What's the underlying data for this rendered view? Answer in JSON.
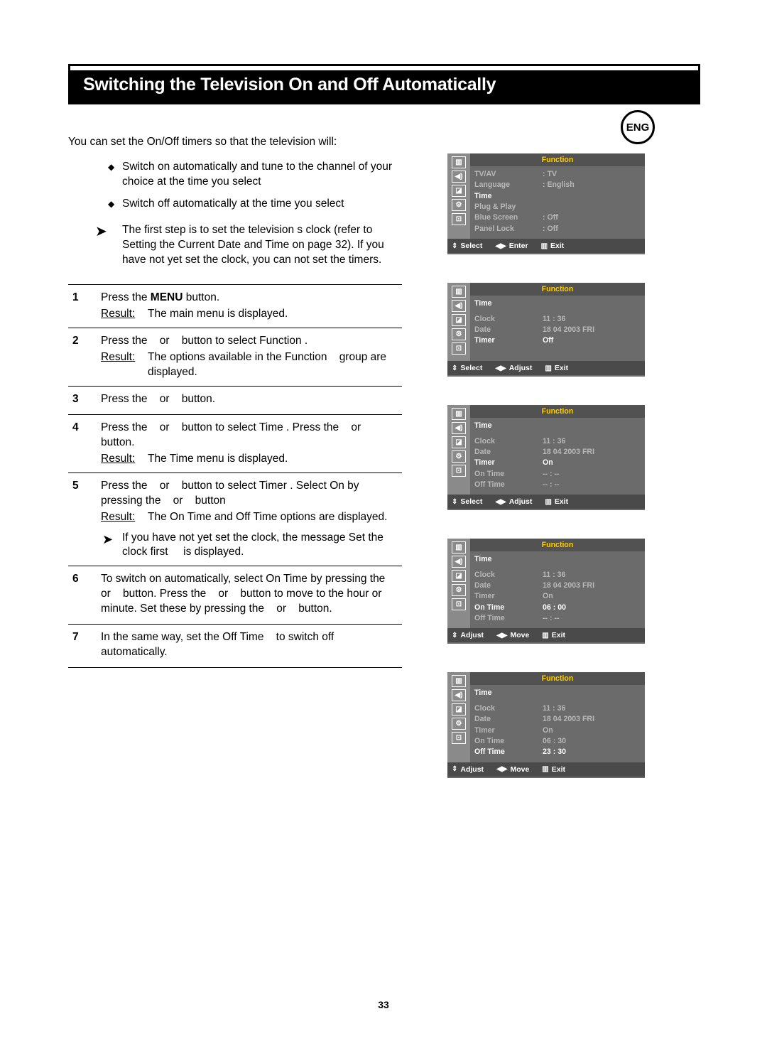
{
  "page_number": "33",
  "lang_badge": "ENG",
  "title": "Switching the Television On and Off Automatically",
  "intro": "You can set the On/Off timers so that the television will:",
  "bullets": [
    "Switch on automatically and tune to the channel of your choice at the time you select",
    "Switch off automatically at the time you select"
  ],
  "pointer_note": "The first step is to set the television s clock (refer to Setting the Current Date and Time  on page 32). If you have not yet set the clock, you can not set the timers.",
  "steps": [
    {
      "num": "1",
      "body": "Press the <b>MENU</b> button.",
      "result": "The main menu is displayed."
    },
    {
      "num": "2",
      "body": "Press the    or    button to select Function .",
      "result": "The options available in the Function    group are displayed."
    },
    {
      "num": "3",
      "body": "Press the    or    button."
    },
    {
      "num": "4",
      "body": "Press the    or    button to select Time . Press the    or    button.",
      "result": "The  Time   menu is displayed."
    },
    {
      "num": "5",
      "body": "Press the    or    button to select Timer . Select On by pressing the    or    button",
      "result": "The  On Time   and  Off Time   options are displayed.",
      "note": "If you have not yet set the clock, the message  Set the clock first     is displayed."
    },
    {
      "num": "6",
      "body": "To switch on automatically, select On Time  by pressing the    or    button. Press the    or    button to move to the hour or minute. Set these by pressing the    or    button."
    },
    {
      "num": "7",
      "body": "In the same way, set the Off Time    to switch off automatically."
    }
  ],
  "osd_icons": [
    "▥",
    "◀)",
    "◪",
    "⚙",
    "⊡"
  ],
  "osd_header": "Function",
  "osd": [
    {
      "rows": [
        {
          "lab": "TV/AV",
          "val": ": TV",
          "dim": true
        },
        {
          "lab": "Language",
          "val": ": English",
          "dim": true
        },
        {
          "lab": "Time",
          "val": "",
          "hl": true
        },
        {
          "lab": "Plug & Play",
          "val": "",
          "dim": true
        },
        {
          "lab": "Blue Screen",
          "val": ": Off",
          "dim": true
        },
        {
          "lab": "Panel Lock",
          "val": ": Off",
          "dim": true
        }
      ],
      "foot": [
        "Select",
        "Enter",
        "Exit"
      ],
      "foot_arrows": [
        "⇕",
        "◀▶",
        "▥"
      ]
    },
    {
      "subhead": "Time",
      "rows": [
        {
          "lab": "Clock",
          "val": "11 : 36",
          "dim": true
        },
        {
          "lab": "Date",
          "val": "18 04 2003 FRI",
          "dim": true
        },
        {
          "lab": "Timer",
          "val": "Off",
          "hl": true
        }
      ],
      "foot": [
        "Select",
        "Adjust",
        "Exit"
      ],
      "foot_arrows": [
        "⇕",
        "◀▶",
        "▥"
      ]
    },
    {
      "subhead": "Time",
      "rows": [
        {
          "lab": "Clock",
          "val": "11 : 36",
          "dim": true
        },
        {
          "lab": "Date",
          "val": "18 04 2003 FRI",
          "dim": true
        },
        {
          "lab": "Timer",
          "val": "On",
          "hl": true
        },
        {
          "lab": "On Time",
          "val": "--  :  --",
          "dim": true
        },
        {
          "lab": "Off Time",
          "val": "--  :  --",
          "dim": true
        }
      ],
      "foot": [
        "Select",
        "Adjust",
        "Exit"
      ],
      "foot_arrows": [
        "⇕",
        "◀▶",
        "▥"
      ]
    },
    {
      "subhead": "Time",
      "rows": [
        {
          "lab": "Clock",
          "val": "11 : 36",
          "dim": true
        },
        {
          "lab": "Date",
          "val": "18 04 2003 FRI",
          "dim": true
        },
        {
          "lab": "Timer",
          "val": "On",
          "dim": true
        },
        {
          "lab": "On Time",
          "val": "06 : 00",
          "hl": true
        },
        {
          "lab": "Off Time",
          "val": "--  :  --",
          "dim": true
        }
      ],
      "foot": [
        "Adjust",
        "Move",
        "Exit"
      ],
      "foot_arrows": [
        "⇕",
        "◀▶",
        "▥"
      ]
    },
    {
      "subhead": "Time",
      "rows": [
        {
          "lab": "Clock",
          "val": "11 : 36",
          "dim": true
        },
        {
          "lab": "Date",
          "val": "18 04 2003 FRI",
          "dim": true
        },
        {
          "lab": "Timer",
          "val": "On",
          "dim": true
        },
        {
          "lab": "On Time",
          "val": "06 : 30",
          "dim": true
        },
        {
          "lab": "Off Time",
          "val": "23 : 30",
          "hl": true
        }
      ],
      "foot": [
        "Adjust",
        "Move",
        "Exit"
      ],
      "foot_arrows": [
        "⇕",
        "◀▶",
        "▥"
      ]
    }
  ]
}
